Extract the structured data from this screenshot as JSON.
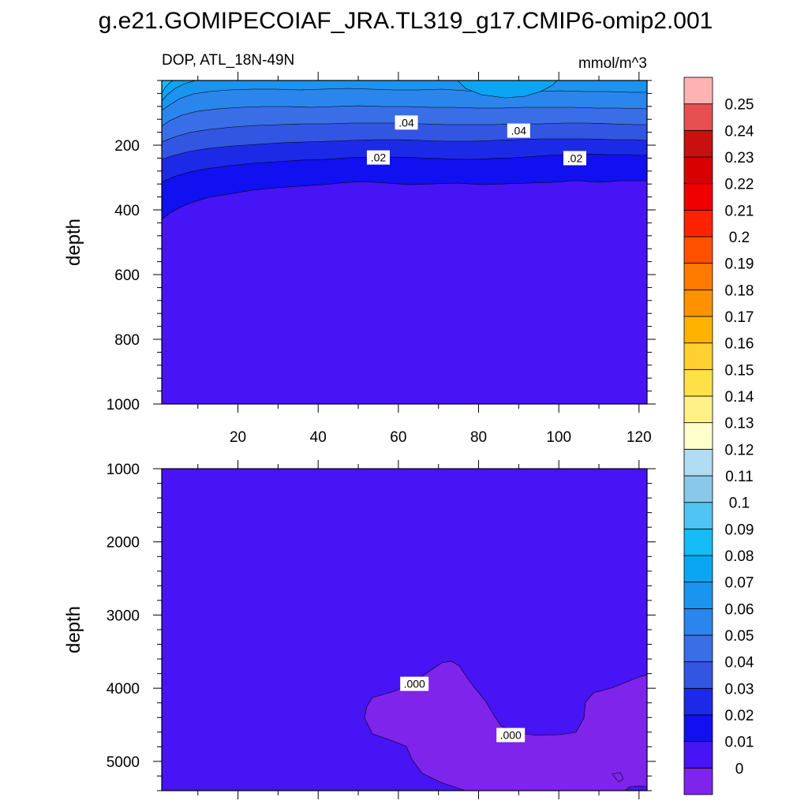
{
  "chart_data": {
    "type": "contour",
    "title": "g.e21.GOMIPECOIAF_JRA.TL319_g17.CMIP6-omip2.001",
    "left_label": "DOP, ATL_18N-49N",
    "right_label": "mmol/m^3",
    "x": {
      "range": [
        1,
        122
      ],
      "ticks": [
        20,
        40,
        60,
        80,
        100,
        120
      ],
      "tick_labels": [
        "20",
        "40",
        "60",
        "80",
        "100",
        "120"
      ]
    },
    "panels": [
      {
        "name": "upper",
        "ylabel": "depth",
        "y_range": [
          0,
          1000
        ],
        "y_ticks": [
          200,
          400,
          600,
          800,
          1000
        ],
        "y_tick_labels": [
          "200",
          "400",
          "600",
          "800",
          "1000"
        ],
        "contour_labels": [
          {
            "text": ".04",
            "x": 62,
            "y": 130
          },
          {
            "text": ".04",
            "x": 90,
            "y": 155
          },
          {
            "text": ".02",
            "x": 55,
            "y": 238
          },
          {
            "text": ".02",
            "x": 104,
            "y": 240
          }
        ]
      },
      {
        "name": "lower",
        "ylabel": "depth",
        "y_range": [
          1000,
          5400
        ],
        "y_ticks": [
          1000,
          2000,
          3000,
          4000,
          5000
        ],
        "y_tick_labels": [
          "1000",
          "2000",
          "3000",
          "4000",
          "5000"
        ],
        "contour_labels": [
          {
            "text": ".000",
            "x": 64,
            "y": 3940
          },
          {
            "text": ".000",
            "x": 88,
            "y": 4640
          }
        ]
      }
    ],
    "colorbar": {
      "labels": [
        "0",
        "0.01",
        "0.02",
        "0.03",
        "0.04",
        "0.05",
        "0.06",
        "0.07",
        "0.08",
        "0.09",
        "0.1",
        "0.11",
        "0.12",
        "0.13",
        "0.14",
        "0.15",
        "0.16",
        "0.17",
        "0.18",
        "0.19",
        "0.2",
        "0.21",
        "0.22",
        "0.23",
        "0.24",
        "0.25"
      ],
      "colors": [
        "#7f24ea",
        "#4614f5",
        "#1010f0",
        "#1c2ae8",
        "#3256e2",
        "#3a6ee6",
        "#2a86ec",
        "#1b94f0",
        "#0aa6f4",
        "#14bcf8",
        "#50c4f2",
        "#8ac8ea",
        "#b0dcf4",
        "#ffffcc",
        "#fff088",
        "#ffe048",
        "#ffd030",
        "#ffb200",
        "#ff9200",
        "#ff7a00",
        "#ff5000",
        "#ff2200",
        "#f00000",
        "#d80000",
        "#c81010",
        "#e65050",
        "#ffb2b2"
      ]
    }
  }
}
